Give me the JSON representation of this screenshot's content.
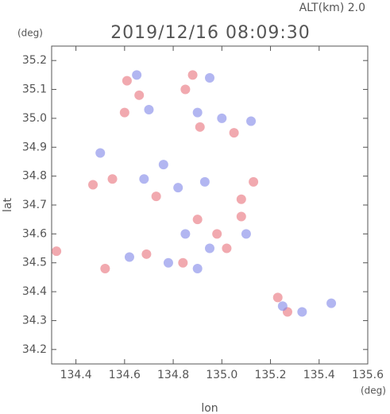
{
  "chart_data": {
    "type": "scatter",
    "title": "2019/12/16 08:09:30",
    "subtitle": "ALT(km) 2.0",
    "x_label": "lon",
    "y_label": "lat",
    "x_unit": "(deg)",
    "y_unit": "(deg)",
    "xlim": [
      134.3,
      135.6
    ],
    "ylim": [
      34.15,
      35.25
    ],
    "xticks": [
      134.4,
      134.6,
      134.8,
      {
        "value": 135,
        "label": "135.0"
      },
      135.2,
      135.4,
      135.6
    ],
    "yticks": [
      34.2,
      34.3,
      34.4,
      34.5,
      34.6,
      34.7,
      34.8,
      34.9,
      {
        "value": 35,
        "label": "35.0"
      },
      35.1,
      35.2
    ],
    "series": [
      {
        "color": "#e8707a",
        "x": [
          134.61,
          134.66,
          134.6,
          134.88,
          134.85,
          134.91,
          135.05,
          135.08,
          134.55,
          134.73,
          134.98,
          135.02,
          134.84,
          134.69,
          134.52,
          134.32,
          135.27,
          135.23,
          135.08,
          135.13,
          134.47,
          134.9
        ],
        "values": [
          35.13,
          35.08,
          35.02,
          35.15,
          35.1,
          34.97,
          34.95,
          34.72,
          34.79,
          34.73,
          34.6,
          34.55,
          34.5,
          34.53,
          34.48,
          34.54,
          34.33,
          34.38,
          34.66,
          34.78,
          34.77,
          34.65
        ]
      },
      {
        "color": "#7f86e8",
        "x": [
          134.65,
          134.7,
          134.95,
          134.9,
          135.0,
          135.12,
          134.5,
          134.76,
          134.82,
          134.68,
          134.93,
          134.95,
          135.1,
          134.78,
          134.62,
          135.33,
          135.45,
          135.25,
          134.9,
          134.85
        ],
        "values": [
          35.15,
          35.03,
          35.14,
          35.02,
          35.0,
          34.99,
          34.88,
          34.84,
          34.76,
          34.79,
          34.78,
          34.55,
          34.6,
          34.5,
          34.52,
          34.33,
          34.36,
          34.35,
          34.48,
          34.6
        ]
      }
    ]
  }
}
